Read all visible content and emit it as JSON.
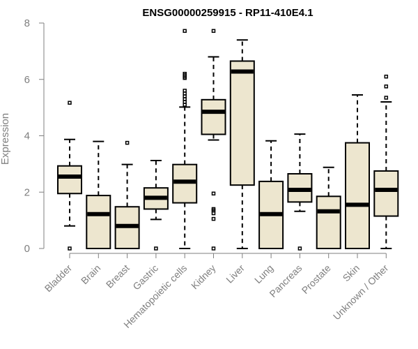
{
  "chart_data": {
    "type": "boxplot",
    "title": "ENSG00000259915 - RP11-410E4.1",
    "xlabel": "",
    "ylabel": "Expression",
    "ylim": [
      0,
      8
    ],
    "yticks": [
      0,
      2,
      4,
      6,
      8
    ],
    "grid": false,
    "categories": [
      "Bladder",
      "Brain",
      "Breast",
      "Gastric",
      "Hematopoietic cells",
      "Kidney",
      "Liver",
      "Lung",
      "Pancreas",
      "Prostate",
      "Skin",
      "Unknown / Other"
    ],
    "boxes": [
      {
        "category": "Bladder",
        "whisker_low": 0.8,
        "q1": 1.95,
        "median": 2.55,
        "q3": 2.93,
        "whisker_high": 3.87,
        "outliers": [
          0.0,
          5.17
        ]
      },
      {
        "category": "Brain",
        "whisker_low": 0.0,
        "q1": 0.0,
        "median": 1.22,
        "q3": 1.88,
        "whisker_high": 3.8,
        "outliers": []
      },
      {
        "category": "Breast",
        "whisker_low": 0.0,
        "q1": 0.0,
        "median": 0.8,
        "q3": 1.48,
        "whisker_high": 2.98,
        "outliers": [
          3.75
        ]
      },
      {
        "category": "Gastric",
        "whisker_low": 1.03,
        "q1": 1.4,
        "median": 1.8,
        "q3": 2.15,
        "whisker_high": 3.12,
        "outliers": [
          0.0
        ]
      },
      {
        "category": "Hematopoietic cells",
        "whisker_low": 0.0,
        "q1": 1.62,
        "median": 2.37,
        "q3": 2.98,
        "whisker_high": 5.02,
        "outliers": [
          5.1,
          5.2,
          5.3,
          5.4,
          5.5,
          5.6,
          6.05,
          6.1,
          6.15,
          6.2,
          7.72
        ]
      },
      {
        "category": "Kidney",
        "whisker_low": 3.85,
        "q1": 4.05,
        "median": 4.85,
        "q3": 5.28,
        "whisker_high": 6.8,
        "outliers": [
          0.0,
          1.05,
          1.25,
          1.35,
          1.4,
          1.95,
          7.72
        ]
      },
      {
        "category": "Liver",
        "whisker_low": 0.0,
        "q1": 2.25,
        "median": 6.28,
        "q3": 6.65,
        "whisker_high": 7.4,
        "outliers": []
      },
      {
        "category": "Lung",
        "whisker_low": 0.0,
        "q1": 0.0,
        "median": 1.22,
        "q3": 2.38,
        "whisker_high": 3.82,
        "outliers": []
      },
      {
        "category": "Pancreas",
        "whisker_low": 1.32,
        "q1": 1.65,
        "median": 2.08,
        "q3": 2.65,
        "whisker_high": 4.06,
        "outliers": [
          0.0
        ]
      },
      {
        "category": "Prostate",
        "whisker_low": 0.0,
        "q1": 0.0,
        "median": 1.32,
        "q3": 1.85,
        "whisker_high": 2.88,
        "outliers": []
      },
      {
        "category": "Skin",
        "whisker_low": 0.0,
        "q1": 0.0,
        "median": 1.55,
        "q3": 3.75,
        "whisker_high": 5.45,
        "outliers": []
      },
      {
        "category": "Unknown / Other",
        "whisker_low": 0.0,
        "q1": 1.15,
        "median": 2.08,
        "q3": 2.75,
        "whisker_high": 5.2,
        "outliers": [
          5.35,
          5.75,
          6.1
        ]
      }
    ]
  },
  "colors": {
    "box_fill": "#ede6cf",
    "stroke": "#000000",
    "axis_text": "#7f7f7f"
  }
}
